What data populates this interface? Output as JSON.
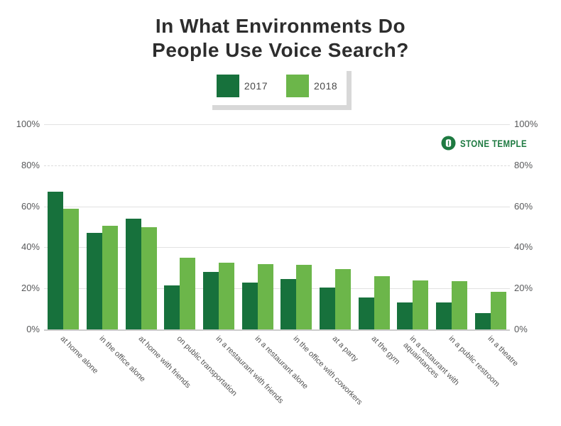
{
  "title": {
    "line1": "In What Environments Do",
    "line2": "People Use Voice Search?"
  },
  "legend": {
    "items": [
      {
        "label": "2017",
        "color": "#17713c"
      },
      {
        "label": "2018",
        "color": "#6cb64a"
      }
    ]
  },
  "logo": {
    "text": "STONE TEMPLE",
    "color": "#1e7a41"
  },
  "axis": {
    "y_tick_labels": [
      "100%",
      "80%",
      "60%",
      "40%",
      "20%",
      "0%"
    ],
    "y_tick_values": [
      100,
      80,
      60,
      40,
      20,
      0
    ]
  },
  "chart_data": {
    "type": "bar",
    "title": "In What Environments Do People Use Voice Search?",
    "categories": [
      "at home alone",
      "in the office alone",
      "at home with friends",
      "on public transportation",
      "in a restaurant with friends",
      "in a restaurant alone",
      "in the office with coworkers",
      "at a party",
      "at the gym",
      "in a restaurant with\naquaintances",
      "in a public restroom",
      "in a theatre"
    ],
    "series": [
      {
        "name": "2017",
        "color": "#17713c",
        "values": [
          67,
          47,
          54,
          21.5,
          28,
          23,
          24.5,
          20.5,
          15.5,
          13,
          13,
          8
        ]
      },
      {
        "name": "2018",
        "color": "#6cb64a",
        "values": [
          59,
          50.5,
          50,
          35,
          32.5,
          32,
          31.5,
          29.5,
          26,
          24,
          23.5,
          18.5
        ]
      }
    ],
    "xlabel": "",
    "ylabel": "",
    "ylim": [
      0,
      100
    ],
    "y_tick_step": 20,
    "grid": true,
    "legend_position": "top-center",
    "axis_sides": "both"
  }
}
